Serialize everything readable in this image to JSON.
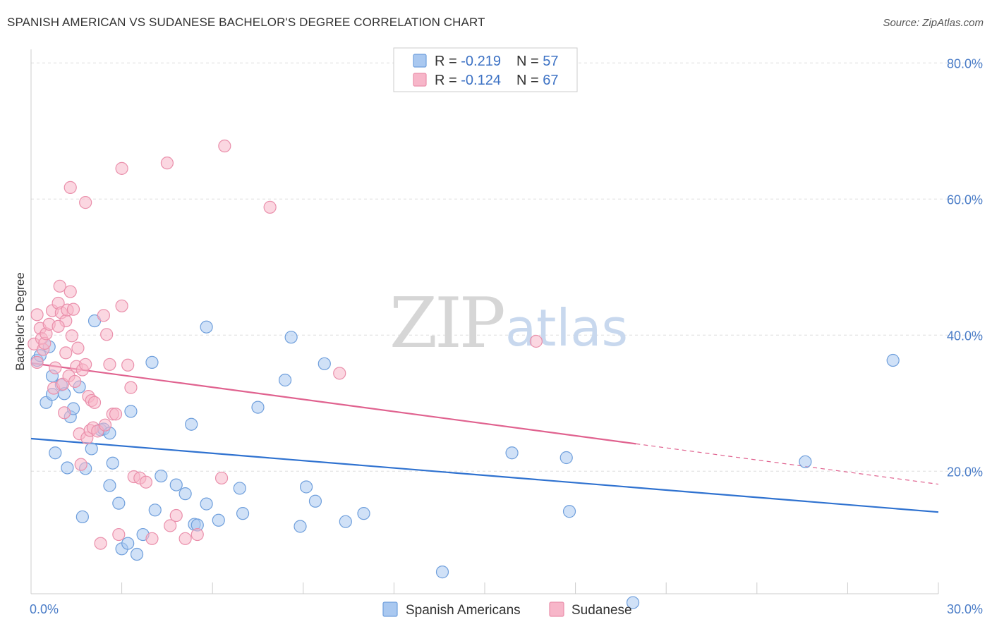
{
  "title": "SPANISH AMERICAN VS SUDANESE BACHELOR'S DEGREE CORRELATION CHART",
  "source": "Source: ZipAtlas.com",
  "watermark": {
    "zip": "ZIP",
    "atlas": "atlas"
  },
  "colors": {
    "blue_fill": "#a9c8f0",
    "blue_stroke": "#6f9fdc",
    "blue_line": "#2f72d0",
    "pink_fill": "#f7b6c9",
    "pink_stroke": "#ea8fab",
    "pink_line": "#e0628f",
    "grid": "#dddddd",
    "axis_label": "#4a7cc7"
  },
  "legend": {
    "rows": [
      {
        "r_label": "R = ",
        "r_value": "-0.219",
        "n_label": "N = ",
        "n_value": "57"
      },
      {
        "r_label": "R = ",
        "r_value": "-0.124",
        "n_label": "N = ",
        "n_value": "67"
      }
    ]
  },
  "chart_data": {
    "type": "scatter",
    "ylabel": "Bachelor's Degree",
    "xlim": [
      0,
      30
    ],
    "ylim": [
      2,
      82
    ],
    "x_tick_labels": [
      {
        "value": 0,
        "label": "0.0%"
      },
      {
        "value": 30,
        "label": "30.0%"
      }
    ],
    "y_tick_labels": [
      {
        "value": 20,
        "label": "20.0%"
      },
      {
        "value": 40,
        "label": "40.0%"
      },
      {
        "value": 60,
        "label": "60.0%"
      },
      {
        "value": 80,
        "label": "80.0%"
      }
    ],
    "grid_y": [
      20,
      40,
      60,
      80
    ],
    "x_minor_ticks": [
      3,
      6,
      9,
      12,
      15,
      18,
      21,
      24,
      27,
      30
    ],
    "legend_position": "top-center",
    "series": [
      {
        "name": "Spanish Americans",
        "color": "blue",
        "trend": {
          "x": [
            0,
            30
          ],
          "y": [
            24.8,
            14.0
          ],
          "dashed_from": null
        },
        "points": [
          [
            0.2,
            36.3
          ],
          [
            0.5,
            30.1
          ],
          [
            0.7,
            31.3
          ],
          [
            0.6,
            38.3
          ],
          [
            0.3,
            37.0
          ],
          [
            0.7,
            34.0
          ],
          [
            0.8,
            22.7
          ],
          [
            1.0,
            32.7
          ],
          [
            1.1,
            31.4
          ],
          [
            1.2,
            20.5
          ],
          [
            1.3,
            28.0
          ],
          [
            1.4,
            29.2
          ],
          [
            1.6,
            32.4
          ],
          [
            1.7,
            13.3
          ],
          [
            1.8,
            20.4
          ],
          [
            2.0,
            23.3
          ],
          [
            2.1,
            42.1
          ],
          [
            2.3,
            26.1
          ],
          [
            2.4,
            26.2
          ],
          [
            2.6,
            25.6
          ],
          [
            2.6,
            17.9
          ],
          [
            2.7,
            21.2
          ],
          [
            2.9,
            15.3
          ],
          [
            3.0,
            8.6
          ],
          [
            3.2,
            9.4
          ],
          [
            3.3,
            28.8
          ],
          [
            3.5,
            7.8
          ],
          [
            3.7,
            10.7
          ],
          [
            4.0,
            36.0
          ],
          [
            4.1,
            14.3
          ],
          [
            4.3,
            19.3
          ],
          [
            4.8,
            18.0
          ],
          [
            5.1,
            16.7
          ],
          [
            5.3,
            26.9
          ],
          [
            5.4,
            12.2
          ],
          [
            5.5,
            12.1
          ],
          [
            5.8,
            15.2
          ],
          [
            5.8,
            41.2
          ],
          [
            6.2,
            12.8
          ],
          [
            6.9,
            17.5
          ],
          [
            7.0,
            13.8
          ],
          [
            7.5,
            29.4
          ],
          [
            8.4,
            33.4
          ],
          [
            8.6,
            39.7
          ],
          [
            8.9,
            11.9
          ],
          [
            9.1,
            17.7
          ],
          [
            9.4,
            15.6
          ],
          [
            9.7,
            35.8
          ],
          [
            10.4,
            12.6
          ],
          [
            11.0,
            13.8
          ],
          [
            13.6,
            5.2
          ],
          [
            15.9,
            22.7
          ],
          [
            17.7,
            22.0
          ],
          [
            17.8,
            14.1
          ],
          [
            19.9,
            0.7
          ],
          [
            25.6,
            21.4
          ],
          [
            28.5,
            36.3
          ]
        ]
      },
      {
        "name": "Sudanese",
        "color": "pink",
        "trend": {
          "x": [
            0,
            30
          ],
          "y": [
            35.9,
            18.1
          ],
          "dashed_from": 20.0
        },
        "points": [
          [
            0.1,
            38.7
          ],
          [
            0.2,
            43.0
          ],
          [
            0.3,
            41.0
          ],
          [
            0.35,
            39.5
          ],
          [
            0.4,
            37.9
          ],
          [
            0.45,
            38.8
          ],
          [
            0.5,
            40.2
          ],
          [
            0.6,
            41.6
          ],
          [
            0.7,
            43.6
          ],
          [
            0.75,
            32.2
          ],
          [
            0.8,
            35.2
          ],
          [
            0.9,
            44.7
          ],
          [
            0.95,
            47.2
          ],
          [
            1.0,
            43.3
          ],
          [
            1.05,
            32.8
          ],
          [
            1.1,
            28.6
          ],
          [
            1.15,
            42.1
          ],
          [
            1.2,
            43.7
          ],
          [
            1.25,
            34.0
          ],
          [
            1.3,
            46.4
          ],
          [
            1.35,
            39.9
          ],
          [
            1.4,
            43.8
          ],
          [
            1.45,
            33.2
          ],
          [
            1.5,
            35.4
          ],
          [
            1.55,
            38.1
          ],
          [
            1.6,
            25.5
          ],
          [
            1.65,
            21.0
          ],
          [
            1.7,
            34.9
          ],
          [
            1.8,
            35.7
          ],
          [
            1.85,
            24.9
          ],
          [
            1.9,
            31.0
          ],
          [
            1.95,
            26.0
          ],
          [
            2.0,
            30.4
          ],
          [
            2.05,
            26.4
          ],
          [
            2.1,
            30.1
          ],
          [
            2.2,
            25.9
          ],
          [
            2.3,
            9.4
          ],
          [
            2.4,
            42.9
          ],
          [
            2.5,
            40.1
          ],
          [
            2.6,
            35.7
          ],
          [
            2.7,
            28.4
          ],
          [
            2.8,
            28.4
          ],
          [
            2.9,
            10.7
          ],
          [
            3.0,
            44.3
          ],
          [
            3.2,
            35.6
          ],
          [
            3.3,
            32.3
          ],
          [
            3.4,
            19.2
          ],
          [
            3.6,
            19.0
          ],
          [
            3.8,
            18.4
          ],
          [
            4.0,
            10.1
          ],
          [
            4.6,
            12.0
          ],
          [
            4.8,
            13.5
          ],
          [
            5.1,
            10.1
          ],
          [
            5.5,
            10.7
          ],
          [
            6.3,
            19.0
          ],
          [
            1.3,
            61.7
          ],
          [
            1.8,
            59.5
          ],
          [
            3.0,
            64.5
          ],
          [
            4.5,
            65.3
          ],
          [
            6.4,
            67.8
          ],
          [
            7.9,
            58.8
          ],
          [
            10.2,
            34.4
          ],
          [
            16.7,
            39.1
          ],
          [
            0.2,
            36.0
          ],
          [
            0.9,
            41.3
          ],
          [
            1.15,
            37.4
          ],
          [
            2.45,
            26.8
          ]
        ]
      }
    ]
  }
}
